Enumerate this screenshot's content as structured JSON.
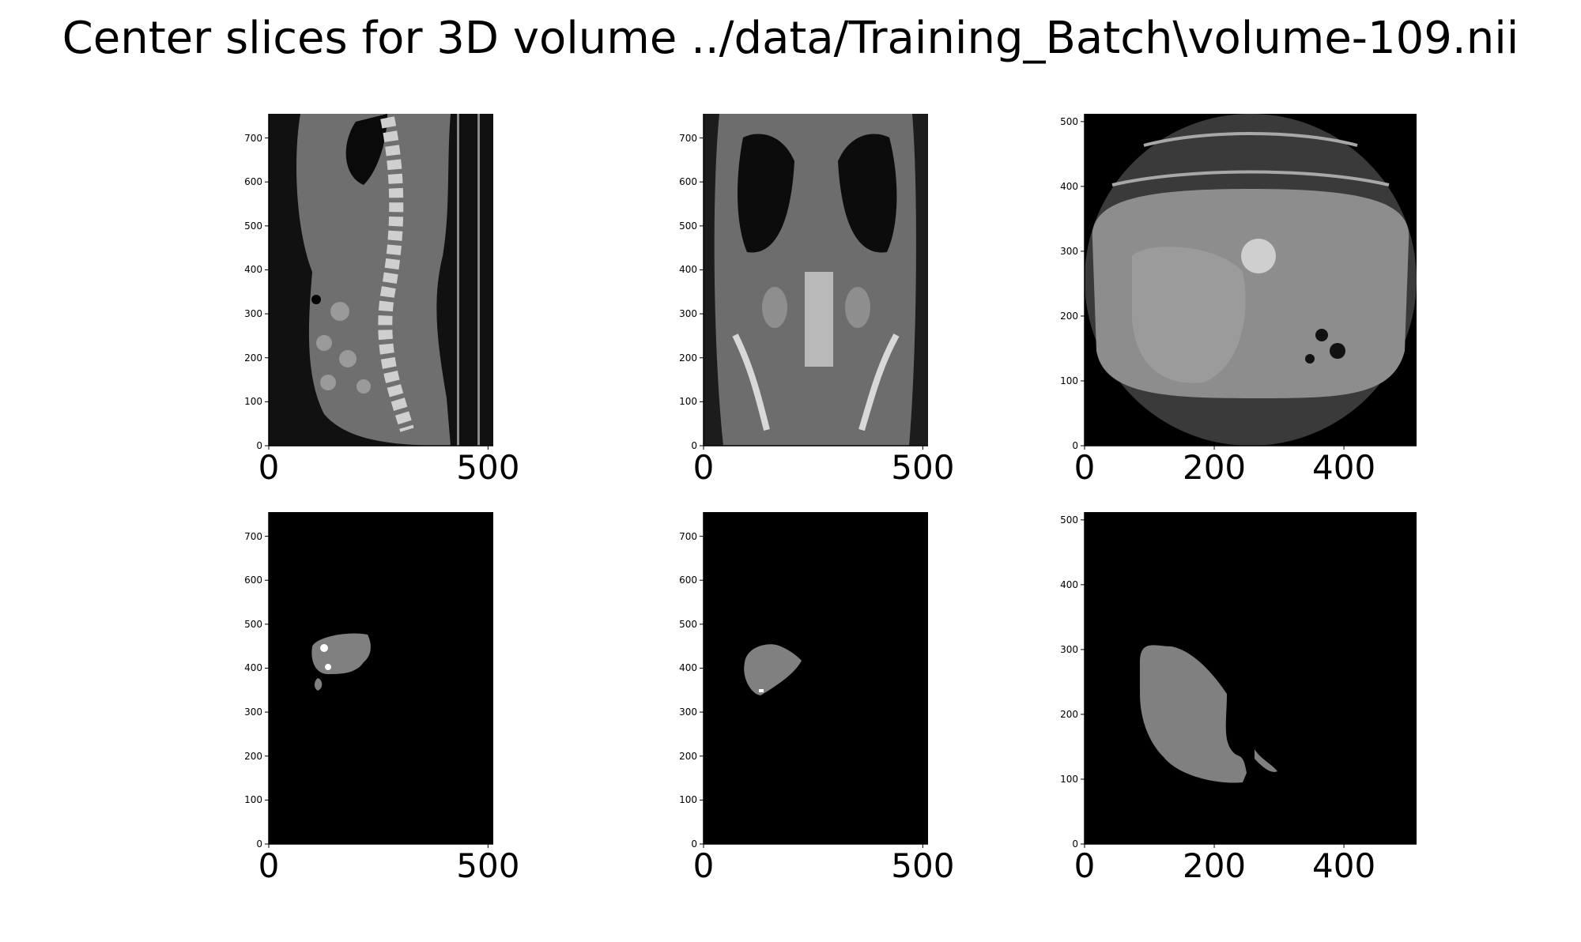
{
  "figure": {
    "title": "Center slices for 3D volume ../data/Training_Batch\\volume-109.nii"
  },
  "panels": [
    {
      "view": "sagittal",
      "kind": "ct",
      "x_ticks": [
        "0",
        "500"
      ],
      "y_ticks": [
        "0",
        "100",
        "200",
        "300",
        "400",
        "500",
        "600",
        "700"
      ],
      "xlim": [
        0,
        512
      ],
      "ylim": [
        0,
        755
      ]
    },
    {
      "view": "coronal",
      "kind": "ct",
      "x_ticks": [
        "0",
        "500"
      ],
      "y_ticks": [
        "0",
        "100",
        "200",
        "300",
        "400",
        "500",
        "600",
        "700"
      ],
      "xlim": [
        0,
        512
      ],
      "ylim": [
        0,
        755
      ]
    },
    {
      "view": "axial",
      "kind": "ct",
      "x_ticks": [
        "0",
        "200",
        "400"
      ],
      "y_ticks": [
        "0",
        "100",
        "200",
        "300",
        "400",
        "500"
      ],
      "xlim": [
        0,
        512
      ],
      "ylim": [
        0,
        512
      ]
    },
    {
      "view": "sagittal",
      "kind": "mask",
      "x_ticks": [
        "0",
        "500"
      ],
      "y_ticks": [
        "0",
        "100",
        "200",
        "300",
        "400",
        "500",
        "600",
        "700"
      ],
      "xlim": [
        0,
        512
      ],
      "ylim": [
        0,
        755
      ]
    },
    {
      "view": "coronal",
      "kind": "mask",
      "x_ticks": [
        "0",
        "500"
      ],
      "y_ticks": [
        "0",
        "100",
        "200",
        "300",
        "400",
        "500",
        "600",
        "700"
      ],
      "xlim": [
        0,
        512
      ],
      "ylim": [
        0,
        755
      ]
    },
    {
      "view": "axial",
      "kind": "mask",
      "x_ticks": [
        "0",
        "200",
        "400"
      ],
      "y_ticks": [
        "0",
        "100",
        "200",
        "300",
        "400",
        "500"
      ],
      "xlim": [
        0,
        512
      ],
      "ylim": [
        0,
        512
      ]
    }
  ]
}
